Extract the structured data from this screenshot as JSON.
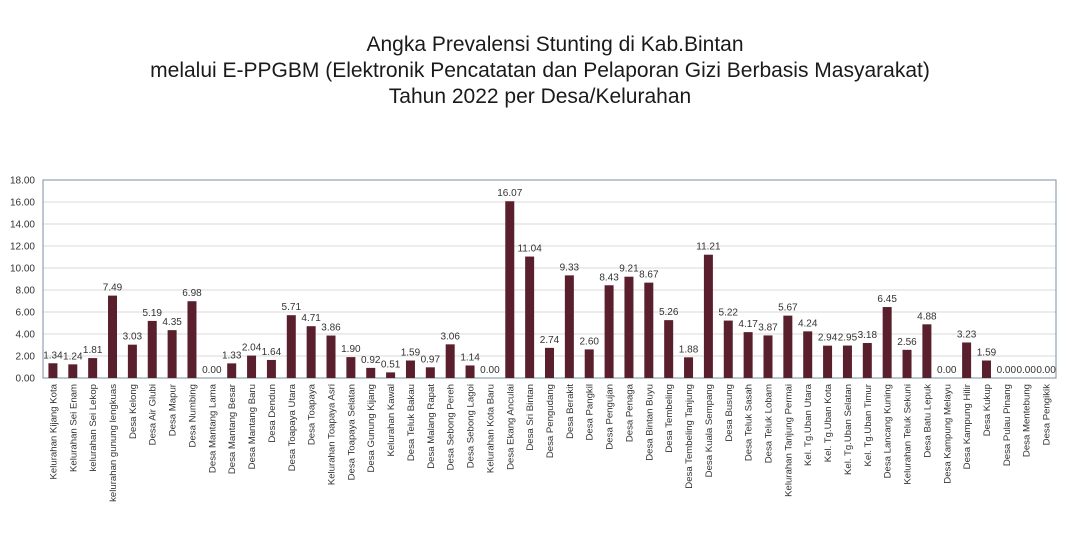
{
  "title": {
    "line1": "Angka Prevalensi Stunting di Kab.Bintan",
    "line2": "melalui E-PPGBM (Elektronik Pencatatan dan Pelaporan Gizi Berbasis Masyarakat)",
    "line3": "Tahun 2022 per Desa/Kelurahan"
  },
  "colors": {
    "bar": "#5a1f2c",
    "plot_border": "#7a8fa6",
    "grid": "#d9d9d9"
  },
  "chart_data": {
    "type": "bar",
    "title": "Angka Prevalensi Stunting di Kab.Bintan melalui E-PPGBM (Elektronik Pencatatan dan Pelaporan Gizi Berbasis Masyarakat) Tahun 2022 per Desa/Kelurahan",
    "ylim": [
      0,
      18
    ],
    "yticks": [
      "0.00",
      "2.00",
      "4.00",
      "6.00",
      "8.00",
      "10.00",
      "12.00",
      "14.00",
      "16.00",
      "18.00"
    ],
    "grid": true,
    "legend": "none",
    "categories": [
      "Kelurahan Kijang Kota",
      "Kelurahan Sei Enam",
      "kelurahan Sei Lekop",
      "kelurahan gunung lengkuas",
      "Desa Kelong",
      "Desa Air Glubi",
      "Desa Mapur",
      "Desa Numbing",
      "Desa Mantang Lama",
      "Desa Mantang Besar",
      "Desa Mantang Baru",
      "Desa Dendun",
      "Desa Toapaya Utara",
      "Desa Toapaya",
      "Kelurahan Toapaya Asri",
      "Desa Toapaya Selatan",
      "Desa Gunung Kijang",
      "Kelurahan Kawal",
      "Desa Teluk Bakau",
      "Desa Malang Rapat",
      "Desa Sebong Pereh",
      "Desa Sebong Lagoi",
      "Kelurahan Kota Baru",
      "Desa Ekang Anculai",
      "Desa Sri Bintan",
      "Desa Pengudang",
      "Desa Berakit",
      "Desa Pangkil",
      "Desa Pengujan",
      "Desa Penaga",
      "Desa Bintan Buyu",
      "Desa Tembeling",
      "Desa Tembeling Tanjung",
      "Desa Kuala Sempang",
      "Desa Busung",
      "Desa Teluk Sasah",
      "Desa Teluk Lobam",
      "Kelurahan Tanjung Permai",
      "Kel. Tg.Uban Utara",
      "Kel. Tg.Uban Kota",
      "Kel. Tg.Uban Selatan",
      "Kel. Tg.Uban Timur",
      "Desa Lancang Kuning",
      "Kelurahan Teluk Sekuni",
      "Desa Batu Lepuk",
      "Desa Kampung Melayu",
      "Desa Kampung Hilir",
      "Desa Kukup",
      "Desa Pulau Pinang",
      "Desa Mentebung",
      "Desa Pengikik"
    ],
    "values": [
      1.34,
      1.24,
      1.81,
      7.49,
      3.03,
      5.19,
      4.35,
      6.98,
      0.0,
      1.33,
      2.04,
      1.64,
      5.71,
      4.71,
      3.86,
      1.9,
      0.92,
      0.51,
      1.59,
      0.97,
      3.06,
      1.14,
      0.0,
      16.07,
      11.04,
      2.74,
      9.33,
      2.6,
      8.43,
      9.21,
      8.67,
      5.26,
      1.88,
      11.21,
      5.22,
      4.17,
      3.87,
      5.67,
      4.24,
      2.94,
      2.95,
      3.18,
      6.45,
      2.56,
      4.88,
      0.0,
      3.23,
      1.59,
      0.0,
      0.0,
      0.0
    ],
    "labels": [
      "1.34",
      "1.24",
      "1.81",
      "7.49",
      "3.03",
      "5.19",
      "4.35",
      "6.98",
      "0.00",
      "1.33",
      "2.04",
      "1.64",
      "5.71",
      "4.71",
      "3.86",
      "1.90",
      "0.92",
      "0.51",
      "1.59",
      "0.97",
      "3.06",
      "1.14",
      "0.00",
      "16.07",
      "11.04",
      "2.74",
      "9.33",
      "2.60",
      "8.43",
      "9.21",
      "8.67",
      "5.26",
      "1.88",
      "11.21",
      "5.22",
      "4.17",
      "3.87",
      "5.67",
      "4.24",
      "2.94",
      "2.95",
      "3.18",
      "6.45",
      "2.56",
      "4.88",
      "0.00",
      "3.23",
      "1.59",
      "0.00",
      "0.00",
      "0.00"
    ]
  }
}
